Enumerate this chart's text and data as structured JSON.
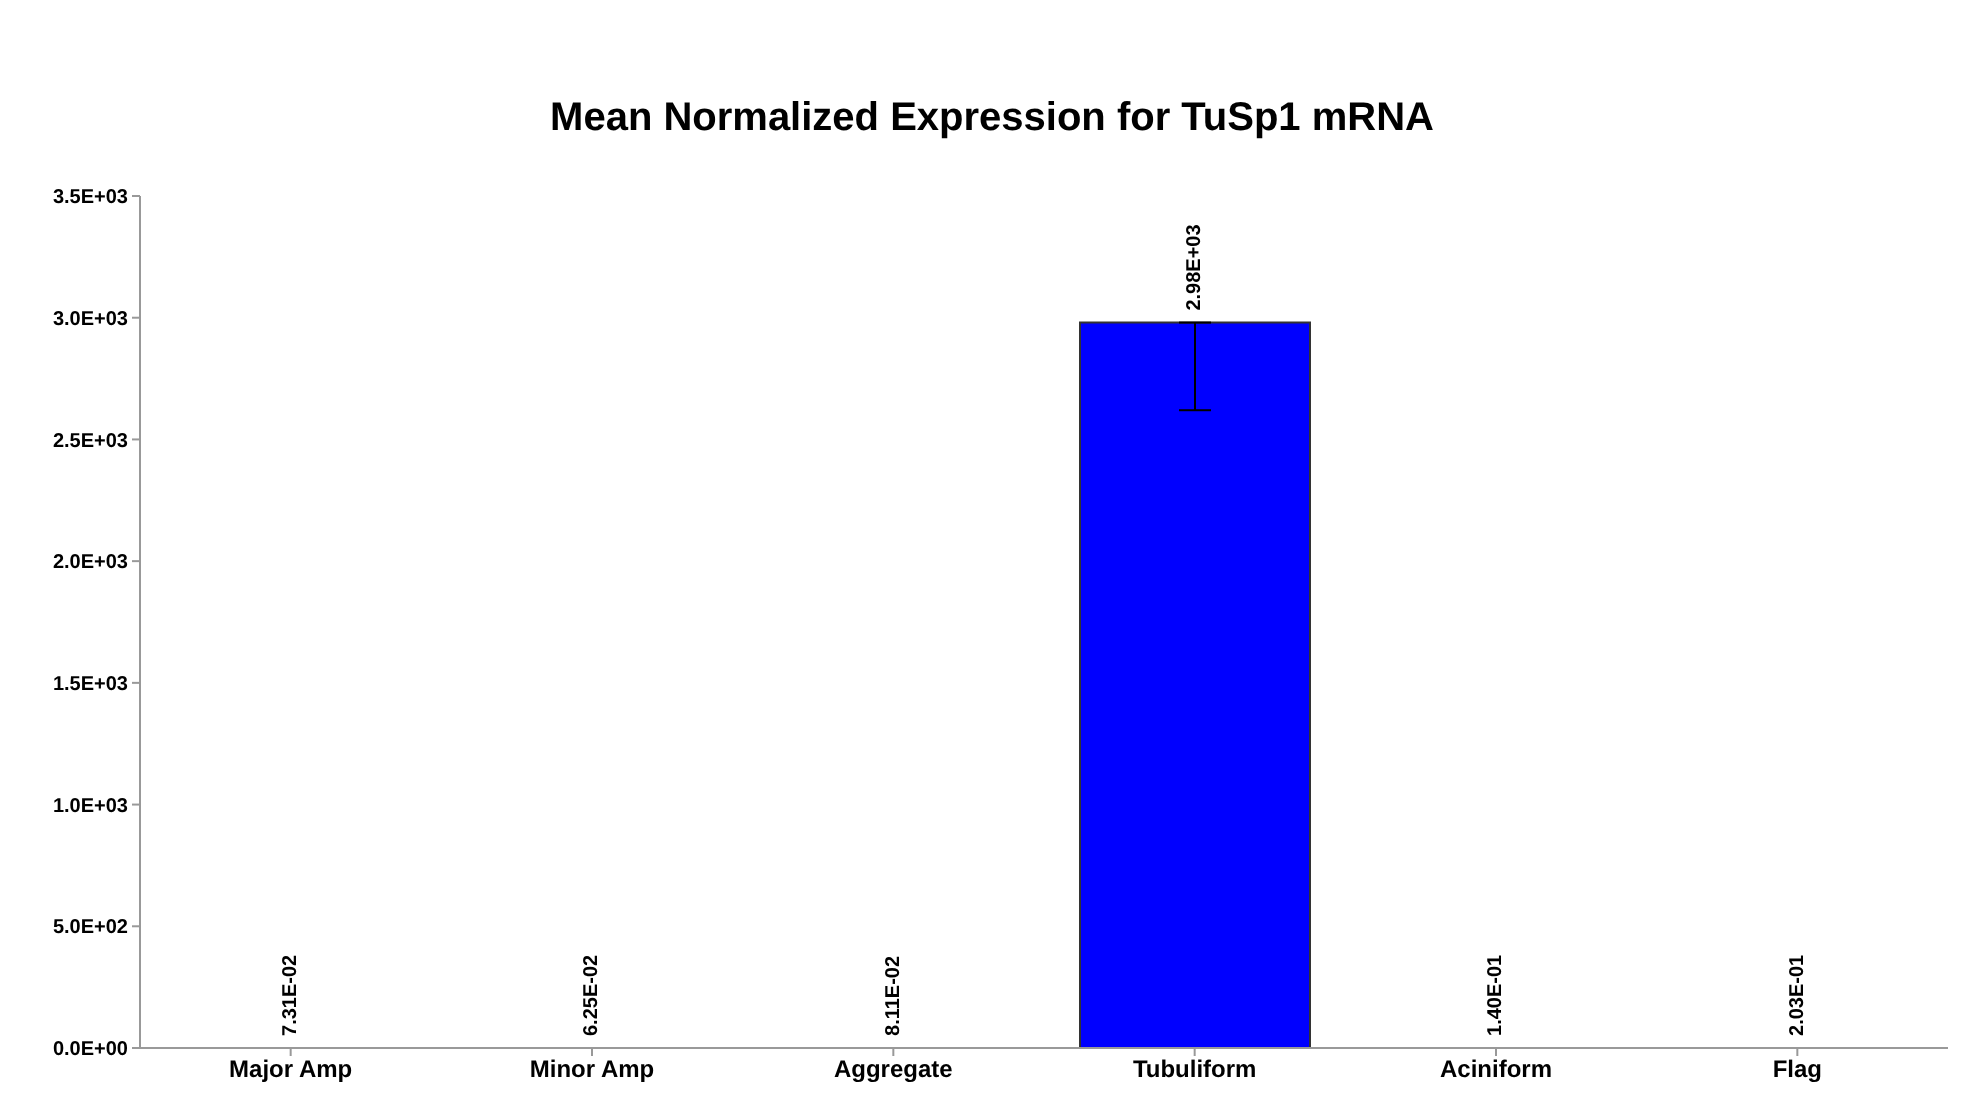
{
  "chart_data": {
    "type": "bar",
    "title": "Mean Normalized Expression for TuSp1 mRNA",
    "categories": [
      "Major Amp",
      "Minor Amp",
      "Aggregate",
      "Tubuliform",
      "Aciniform",
      "Flag"
    ],
    "values": [
      0.0731,
      0.0625,
      0.0811,
      2980,
      0.14,
      0.203
    ],
    "value_labels": [
      "7.31E-02",
      "6.25E-02",
      "8.11E-02",
      "2.98E+03",
      "1.40E-01",
      "2.03E-01"
    ],
    "errors": [
      null,
      null,
      null,
      [
        2620,
        2980
      ],
      null,
      null
    ],
    "color": "#0000ff",
    "ylim": [
      0,
      3500
    ],
    "yticks": [
      {
        "value": 0,
        "label": "0.0E+00"
      },
      {
        "value": 500,
        "label": "5.0E+02"
      },
      {
        "value": 1000,
        "label": "1.0E+03"
      },
      {
        "value": 1500,
        "label": "1.5E+03"
      },
      {
        "value": 2000,
        "label": "2.0E+03"
      },
      {
        "value": 2500,
        "label": "2.5E+03"
      },
      {
        "value": 3000,
        "label": "3.0E+03"
      },
      {
        "value": 3500,
        "label": "3.5E+03"
      }
    ],
    "grid": false,
    "legend": false
  }
}
